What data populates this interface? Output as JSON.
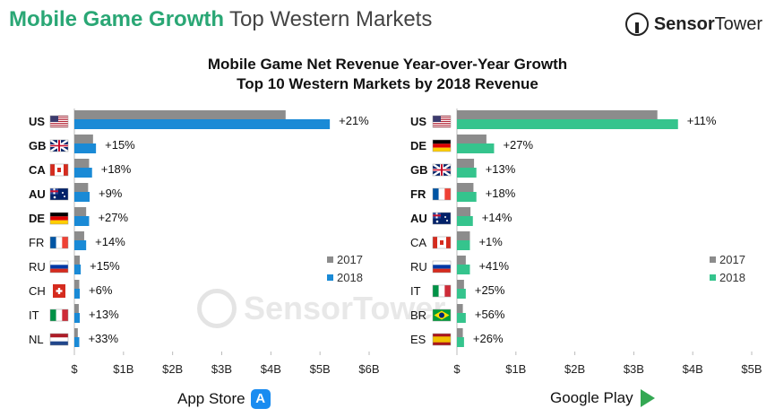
{
  "header": {
    "title_bold": "Mobile Game Growth",
    "title_rest": "Top Western Markets"
  },
  "brand": {
    "name_a": "Sensor",
    "name_b": "Tower"
  },
  "chart_title_1": "Mobile Game Net Revenue Year-over-Year Growth",
  "chart_title_2": "Top 10 Western Markets by 2018 Revenue",
  "colors": {
    "y2017": "#8c8c8c",
    "app2018": "#1a8ad6",
    "play2018": "#35c48d",
    "header_green": "#2aa775"
  },
  "chart_data": [
    {
      "type": "bar",
      "store": "App Store",
      "unit": "$B",
      "xlim": [
        0,
        6
      ],
      "xticks": [
        "$",
        "$1B",
        "$2B",
        "$3B",
        "$4B",
        "$5B",
        "$6B"
      ],
      "legend": [
        "2017",
        "2018"
      ],
      "categories": [
        "US",
        "GB",
        "CA",
        "AU",
        "DE",
        "FR",
        "RU",
        "CH",
        "IT",
        "NL"
      ],
      "bold": [
        true,
        true,
        true,
        true,
        true,
        false,
        false,
        false,
        false,
        false
      ],
      "series": [
        {
          "name": "2017",
          "values": [
            4.3,
            0.38,
            0.3,
            0.28,
            0.24,
            0.2,
            0.11,
            0.1,
            0.09,
            0.07
          ]
        },
        {
          "name": "2018",
          "values": [
            5.2,
            0.44,
            0.36,
            0.31,
            0.3,
            0.24,
            0.13,
            0.11,
            0.11,
            0.1
          ]
        }
      ],
      "labels": [
        "+21%",
        "+15%",
        "+18%",
        "+9%",
        "+27%",
        "+14%",
        "+15%",
        "+6%",
        "+13%",
        "+33%"
      ]
    },
    {
      "type": "bar",
      "store": "Google Play",
      "unit": "$B",
      "xlim": [
        0,
        5
      ],
      "xticks": [
        "$",
        "$1B",
        "$2B",
        "$3B",
        "$4B",
        "$5B"
      ],
      "legend": [
        "2017",
        "2018"
      ],
      "categories": [
        "US",
        "DE",
        "GB",
        "FR",
        "AU",
        "CA",
        "RU",
        "IT",
        "BR",
        "ES"
      ],
      "bold": [
        true,
        true,
        true,
        true,
        true,
        false,
        false,
        false,
        false,
        false
      ],
      "series": [
        {
          "name": "2017",
          "values": [
            3.4,
            0.5,
            0.29,
            0.28,
            0.23,
            0.22,
            0.15,
            0.12,
            0.1,
            0.1
          ]
        },
        {
          "name": "2018",
          "values": [
            3.75,
            0.63,
            0.33,
            0.33,
            0.27,
            0.22,
            0.22,
            0.15,
            0.15,
            0.12
          ]
        }
      ],
      "labels": [
        "+11%",
        "+27%",
        "+13%",
        "+18%",
        "+14%",
        "+1%",
        "+41%",
        "+25%",
        "+56%",
        "+26%"
      ]
    }
  ],
  "flag_icons": {
    "US": "us-flag-icon",
    "GB": "gb-flag-icon",
    "CA": "ca-flag-icon",
    "AU": "au-flag-icon",
    "DE": "de-flag-icon",
    "FR": "fr-flag-icon",
    "RU": "ru-flag-icon",
    "CH": "ch-flag-icon",
    "IT": "it-flag-icon",
    "NL": "nl-flag-icon",
    "BR": "br-flag-icon",
    "ES": "es-flag-icon"
  }
}
